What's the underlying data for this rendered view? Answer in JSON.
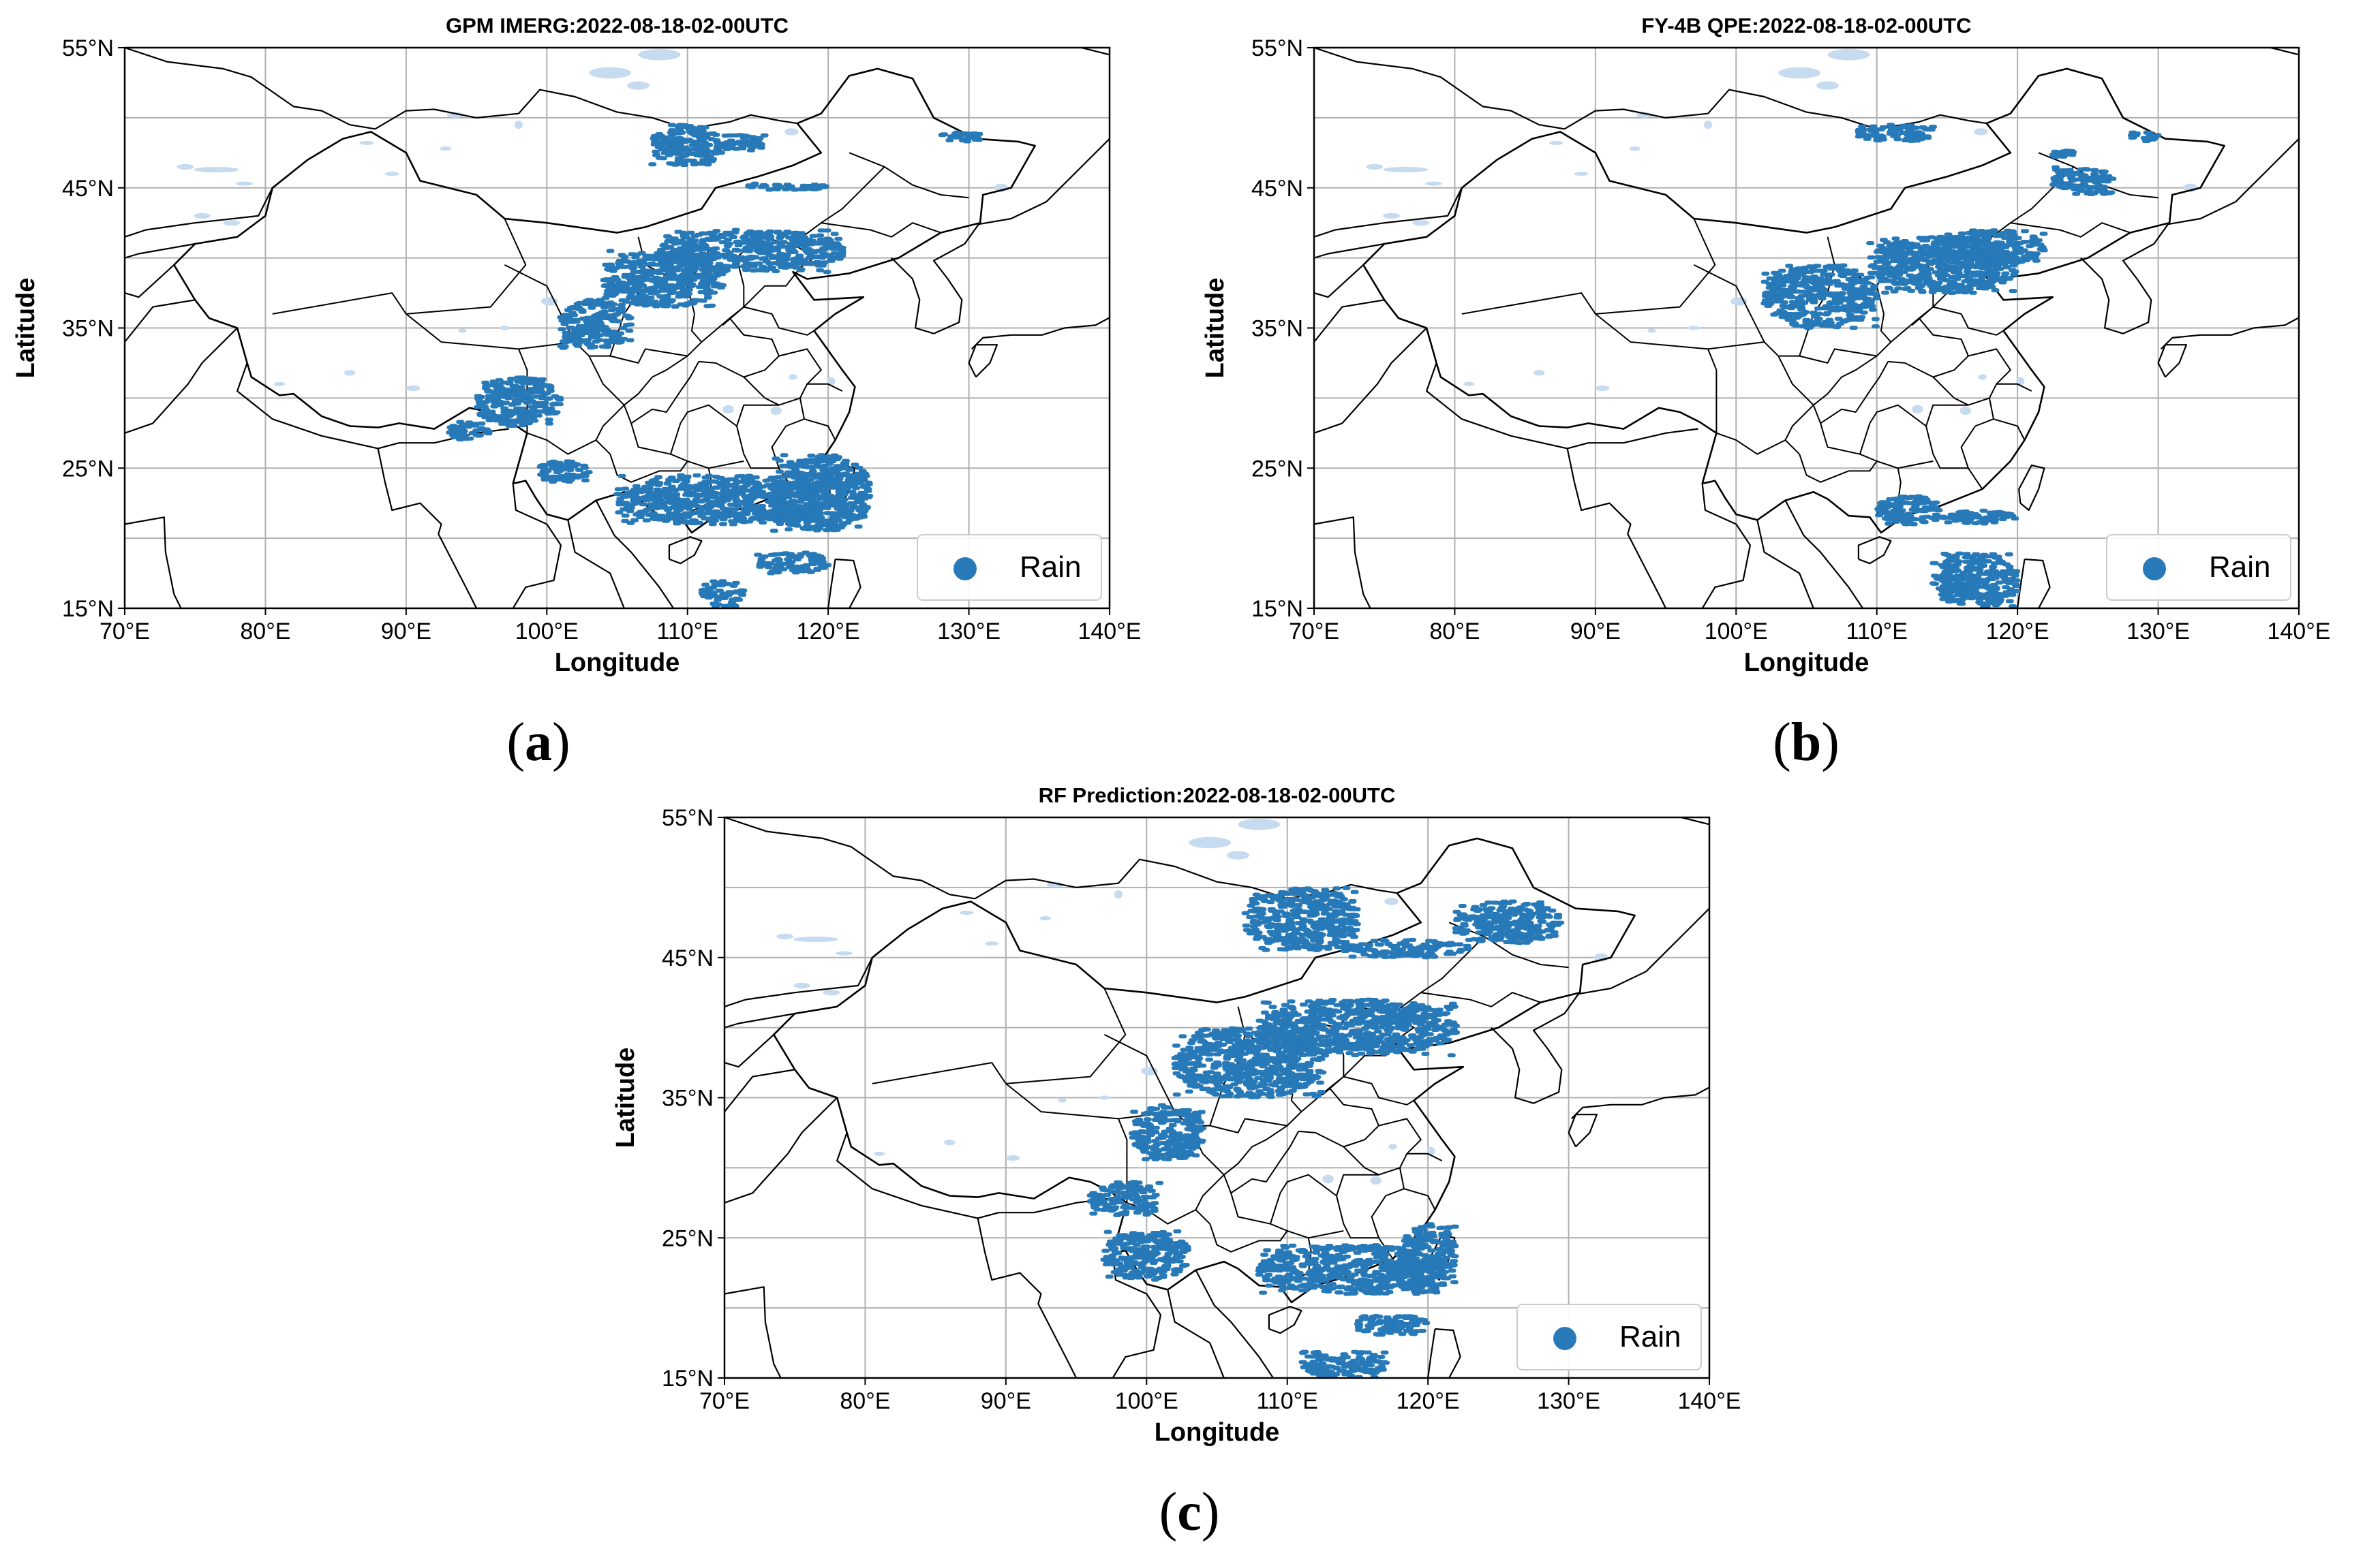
{
  "figure": {
    "captions": [
      "a",
      "b",
      "c"
    ]
  },
  "colors": {
    "rain": "#2779b8",
    "lake": "#c6dbef",
    "border": "#000000",
    "grid": "#b0b0b0"
  },
  "legend": {
    "label": "Rain",
    "placement": "lower-right"
  },
  "chart_data": [
    {
      "type": "map-scatter",
      "title": "GPM IMERG:2022-08-18-02-00UTC",
      "xlabel": "Longitude",
      "ylabel": "Latitude",
      "xlim": [
        70,
        140
      ],
      "ylim": [
        15,
        55
      ],
      "xticks": [
        "70°E",
        "80°E",
        "90°E",
        "100°E",
        "110°E",
        "120°E",
        "130°E",
        "140°E"
      ],
      "yticks": [
        "15°N",
        "25°N",
        "35°N",
        "45°N",
        "55°N"
      ],
      "grid": true,
      "series": [
        {
          "name": "Rain",
          "regions": [
            {
              "lon": [
                107.5,
                112.5
              ],
              "lat": [
                46.5,
                49.5
              ]
            },
            {
              "lon": [
                112.5,
                115.5
              ],
              "lat": [
                47.5,
                48.8
              ]
            },
            {
              "lon": [
                114.0,
                120.0
              ],
              "lat": [
                44.8,
                45.3
              ]
            },
            {
              "lon": [
                128.0,
                131.0
              ],
              "lat": [
                48.3,
                49.0
              ]
            },
            {
              "lon": [
                104.0,
                112.5
              ],
              "lat": [
                36.5,
                40.5
              ]
            },
            {
              "lon": [
                108.0,
                121.0
              ],
              "lat": [
                39.0,
                42.0
              ]
            },
            {
              "lon": [
                101.0,
                106.0
              ],
              "lat": [
                33.5,
                37.0
              ]
            },
            {
              "lon": [
                95.0,
                101.0
              ],
              "lat": [
                28.0,
                31.5
              ]
            },
            {
              "lon": [
                93.0,
                96.0
              ],
              "lat": [
                27.0,
                28.3
              ]
            },
            {
              "lon": [
                105.0,
                120.0
              ],
              "lat": [
                21.0,
                24.5
              ]
            },
            {
              "lon": [
                116.0,
                123.0
              ],
              "lat": [
                20.5,
                26.0
              ]
            },
            {
              "lon": [
                115.0,
                120.0
              ],
              "lat": [
                17.5,
                19.0
              ]
            },
            {
              "lon": [
                111.0,
                114.0
              ],
              "lat": [
                15.0,
                17.0
              ]
            },
            {
              "lon": [
                99.0,
                103.0
              ],
              "lat": [
                24.0,
                25.5
              ]
            }
          ]
        }
      ]
    },
    {
      "type": "map-scatter",
      "title": "FY-4B QPE:2022-08-18-02-00UTC",
      "xlabel": "Longitude",
      "ylabel": "Latitude",
      "xlim": [
        70,
        140
      ],
      "ylim": [
        15,
        55
      ],
      "xticks": [
        "70°E",
        "80°E",
        "90°E",
        "100°E",
        "110°E",
        "120°E",
        "130°E",
        "140°E"
      ],
      "yticks": [
        "15°N",
        "25°N",
        "35°N",
        "45°N",
        "55°N"
      ],
      "grid": true,
      "series": [
        {
          "name": "Rain",
          "regions": [
            {
              "lon": [
                108.5,
                114.5
              ],
              "lat": [
                48.3,
                49.5
              ]
            },
            {
              "lon": [
                122.5,
                127.0
              ],
              "lat": [
                44.5,
                46.5
              ]
            },
            {
              "lon": [
                128.0,
                130.0
              ],
              "lat": [
                48.3,
                49.0
              ]
            },
            {
              "lon": [
                122.5,
                124.0
              ],
              "lat": [
                47.0,
                47.8
              ]
            },
            {
              "lon": [
                102.0,
                110.0
              ],
              "lat": [
                35.0,
                39.5
              ]
            },
            {
              "lon": [
                109.5,
                120.0
              ],
              "lat": [
                37.5,
                41.5
              ]
            },
            {
              "lon": [
                114.0,
                122.0
              ],
              "lat": [
                39.5,
                42.0
              ]
            },
            {
              "lon": [
                110.0,
                115.0
              ],
              "lat": [
                21.0,
                23.0
              ]
            },
            {
              "lon": [
                115.0,
                120.0
              ],
              "lat": [
                21.0,
                22.0
              ]
            },
            {
              "lon": [
                114.0,
                120.0
              ],
              "lat": [
                15.0,
                19.0
              ]
            }
          ]
        }
      ]
    },
    {
      "type": "map-scatter",
      "title": "RF Prediction:2022-08-18-02-00UTC",
      "xlabel": "Longitude",
      "ylabel": "Latitude",
      "xlim": [
        70,
        140
      ],
      "ylim": [
        15,
        55
      ],
      "xticks": [
        "70°E",
        "80°E",
        "90°E",
        "100°E",
        "110°E",
        "120°E",
        "130°E",
        "140°E"
      ],
      "yticks": [
        "15°N",
        "25°N",
        "35°N",
        "45°N",
        "55°N"
      ],
      "grid": true,
      "series": [
        {
          "name": "Rain",
          "regions": [
            {
              "lon": [
                107.0,
                115.0
              ],
              "lat": [
                45.5,
                50.0
              ]
            },
            {
              "lon": [
                114.0,
                123.0
              ],
              "lat": [
                45.0,
                46.3
              ]
            },
            {
              "lon": [
                122.0,
                129.5
              ],
              "lat": [
                46.0,
                49.0
              ]
            },
            {
              "lon": [
                102.0,
                112.5
              ],
              "lat": [
                35.0,
                40.0
              ]
            },
            {
              "lon": [
                108.0,
                122.0
              ],
              "lat": [
                38.0,
                42.0
              ]
            },
            {
              "lon": [
                99.0,
                104.0
              ],
              "lat": [
                30.5,
                34.5
              ]
            },
            {
              "lon": [
                96.0,
                101.0
              ],
              "lat": [
                26.5,
                29.0
              ]
            },
            {
              "lon": [
                97.0,
                103.0
              ],
              "lat": [
                22.0,
                25.5
              ]
            },
            {
              "lon": [
                108.0,
                121.0
              ],
              "lat": [
                21.0,
                24.5
              ]
            },
            {
              "lon": [
                118.0,
                122.0
              ],
              "lat": [
                21.0,
                26.0
              ]
            },
            {
              "lon": [
                115.0,
                120.0
              ],
              "lat": [
                18.0,
                19.5
              ]
            },
            {
              "lon": [
                111.0,
                117.0
              ],
              "lat": [
                15.0,
                17.0
              ]
            }
          ]
        }
      ]
    }
  ]
}
